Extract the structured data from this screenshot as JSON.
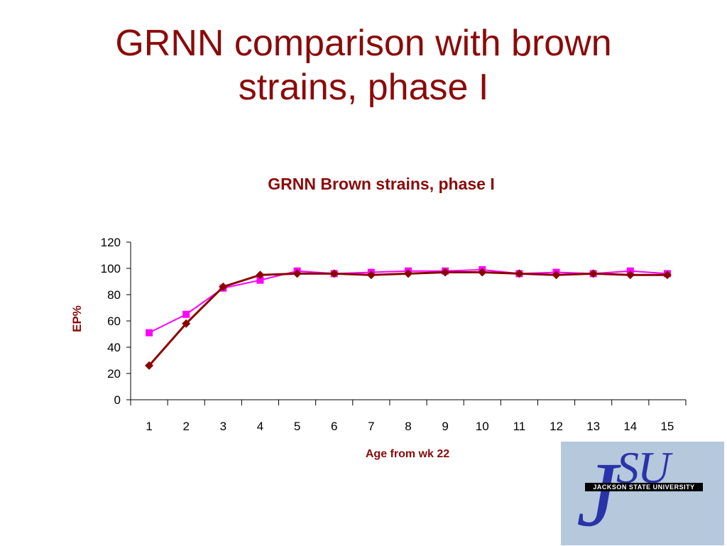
{
  "slide": {
    "title_line1": "GRNN comparison with brown",
    "title_line2": "strains, phase I"
  },
  "logo": {
    "monogram": "SU",
    "j_letter": "J",
    "name": "JACKSON STATE UNIVERSITY"
  },
  "chart_data": {
    "type": "line",
    "title": "GRNN Brown strains, phase I",
    "xlabel": "Age from wk 22",
    "ylabel": "EP%",
    "categories": [
      "1",
      "2",
      "3",
      "4",
      "5",
      "6",
      "7",
      "8",
      "9",
      "10",
      "11",
      "12",
      "13",
      "14",
      "15"
    ],
    "ylim": [
      0,
      120
    ],
    "yticks": [
      0,
      20,
      40,
      60,
      80,
      100,
      120
    ],
    "grid": false,
    "legend": "none",
    "series": [
      {
        "color": "#8b0000",
        "marker": "diamond",
        "values": [
          26,
          58,
          86,
          95,
          96,
          96,
          95,
          96,
          97,
          97,
          96,
          95,
          96,
          95,
          95
        ]
      },
      {
        "color": "#ff00ff",
        "marker": "square",
        "values": [
          51,
          65,
          85,
          91,
          98,
          96,
          97,
          98,
          98,
          99,
          96,
          97,
          96,
          98,
          96
        ]
      }
    ]
  }
}
